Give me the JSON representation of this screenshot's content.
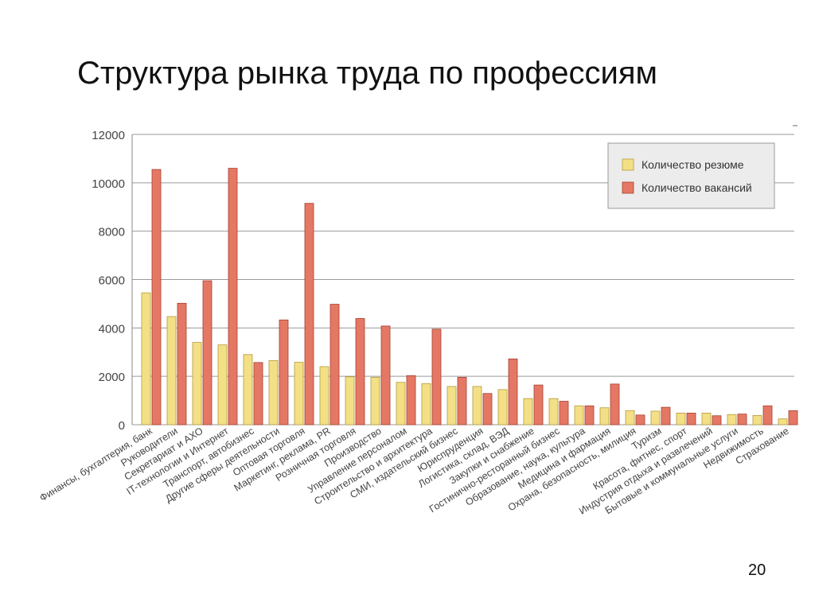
{
  "slide": {
    "title": "Структура рынка труда по профессиям",
    "page_number": "20"
  },
  "colors": {
    "resume_fill": "#f3df86",
    "resume_stroke": "#b49a3c",
    "vacancy_fill": "#e57865",
    "vacancy_stroke": "#a5402f",
    "grid": "#9a9a9a",
    "axis_text": "#444444",
    "legend_bg": "#ececec"
  },
  "chart_data": {
    "type": "bar",
    "title": "",
    "xlabel": "",
    "ylabel": "",
    "ylim": [
      0,
      12000
    ],
    "yticks": [
      "0",
      "2000",
      "4000",
      "6000",
      "8000",
      "10000",
      "12000"
    ],
    "grid": true,
    "legend_position": "top-right",
    "categories": [
      "Финансы, бухгалтерия, банк",
      "Руководители",
      "Секретариат и АХО",
      "IT-технологии и Интернет",
      "Транспорт, автобизнес",
      "Другие сферы деятельности",
      "Оптовая торговля",
      "Маркетинг, реклама, PR",
      "Розничная торговля",
      "Производство",
      "Управление персоналом",
      "Строительство и архитектура",
      "СМИ, издательский бизнес",
      "Юриспруденция",
      "Логистика, склад, ВЭД",
      "Закупки и снабжение",
      "Гостинично-ресторанный бизнес",
      "Образование, наука, культура",
      "Медицина и фармация",
      "Охрана, безопасность, милиция",
      "Туризм",
      "Красота, фитнес, спорт",
      "Индустрия отдыха и развлечений",
      "Бытовые и коммунальные услуги",
      "Недвижимость",
      "Страхование"
    ],
    "series": [
      {
        "name": "Количество резюме",
        "values": [
          5450,
          4470,
          3400,
          3300,
          2900,
          2650,
          2580,
          2400,
          1980,
          1960,
          1750,
          1700,
          1580,
          1580,
          1450,
          1080,
          1080,
          780,
          700,
          580,
          560,
          480,
          480,
          420,
          380,
          240
        ]
      },
      {
        "name": "Количество вакансий",
        "values": [
          10550,
          5020,
          5950,
          10600,
          2570,
          4330,
          9150,
          4980,
          4390,
          4080,
          2030,
          3950,
          1960,
          1290,
          2720,
          1640,
          970,
          780,
          1680,
          400,
          720,
          480,
          370,
          440,
          780,
          580
        ]
      }
    ]
  }
}
